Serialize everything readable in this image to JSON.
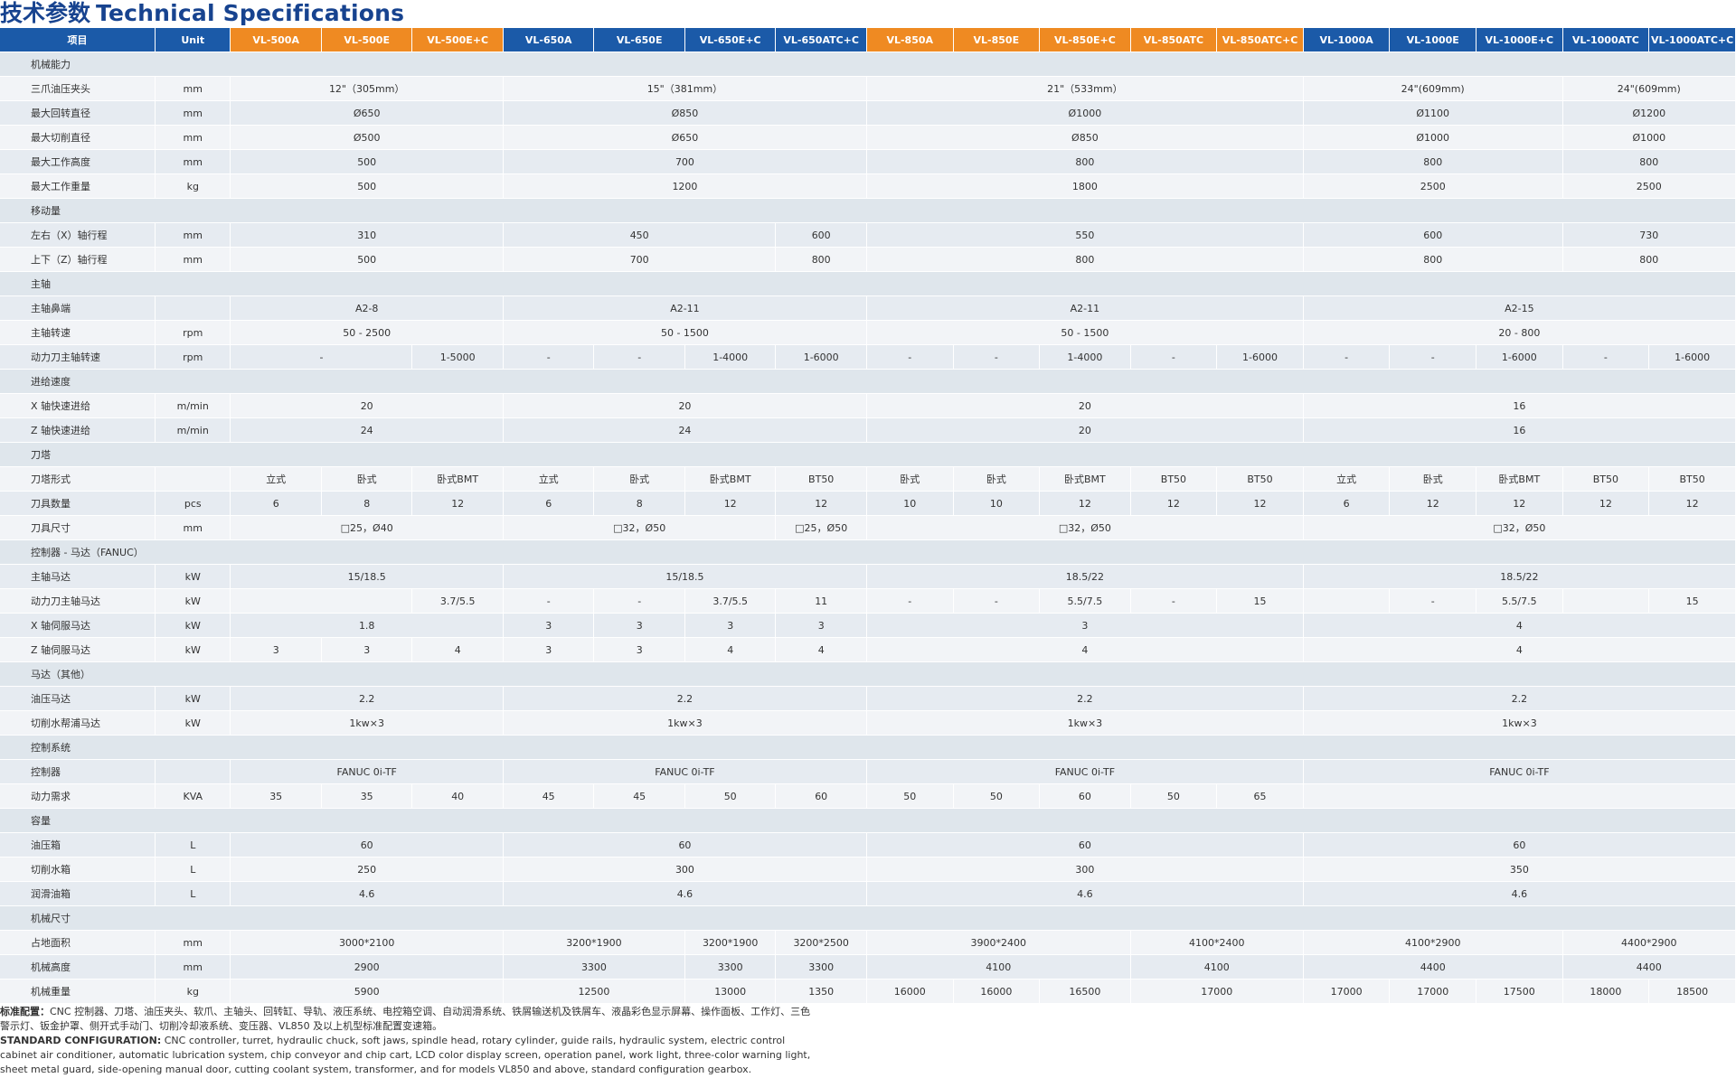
{
  "title": {
    "cn": "技术参数",
    "en": "Technical Specifications"
  },
  "header": {
    "item": "项目",
    "unit": "Unit",
    "models": [
      {
        "name": "VL-500A",
        "color": "orange"
      },
      {
        "name": "VL-500E",
        "color": "orange"
      },
      {
        "name": "VL-500E+C",
        "color": "orange"
      },
      {
        "name": "VL-650A",
        "color": "blue"
      },
      {
        "name": "VL-650E",
        "color": "blue"
      },
      {
        "name": "VL-650E+C",
        "color": "blue"
      },
      {
        "name": "VL-650ATC+C",
        "color": "blue"
      },
      {
        "name": "VL-850A",
        "color": "orange"
      },
      {
        "name": "VL-850E",
        "color": "orange"
      },
      {
        "name": "VL-850E+C",
        "color": "orange"
      },
      {
        "name": "VL-850ATC",
        "color": "orange"
      },
      {
        "name": "VL-850ATC+C",
        "color": "orange"
      },
      {
        "name": "VL-1000A",
        "color": "blue"
      },
      {
        "name": "VL-1000E",
        "color": "blue"
      },
      {
        "name": "VL-1000E+C",
        "color": "blue"
      },
      {
        "name": "VL-1000ATC",
        "color": "blue"
      },
      {
        "name": "VL-1000ATC+C",
        "color": "blue"
      }
    ]
  },
  "rows": [
    {
      "section": "机械能力"
    },
    {
      "label": "三爪油压夹头",
      "unit": "mm",
      "cells": [
        [
          "12\"（305mm）",
          3
        ],
        [
          "15\"（381mm）",
          4
        ],
        [
          "21\"（533mm）",
          5
        ],
        [
          "24\"(609mm)",
          3
        ],
        [
          "24\"(609mm)",
          2
        ]
      ]
    },
    {
      "label": "最大回转直径",
      "unit": "mm",
      "cells": [
        [
          "Ø650",
          3
        ],
        [
          "Ø850",
          4
        ],
        [
          "Ø1000",
          5
        ],
        [
          "Ø1100",
          3
        ],
        [
          "Ø1200",
          2
        ]
      ]
    },
    {
      "label": "最大切削直径",
      "unit": "mm",
      "cells": [
        [
          "Ø500",
          3
        ],
        [
          "Ø650",
          4
        ],
        [
          "Ø850",
          5
        ],
        [
          "Ø1000",
          3
        ],
        [
          "Ø1000",
          2
        ]
      ]
    },
    {
      "label": "最大工作高度",
      "unit": "mm",
      "cells": [
        [
          "500",
          3
        ],
        [
          "700",
          4
        ],
        [
          "800",
          5
        ],
        [
          "800",
          3
        ],
        [
          "800",
          2
        ]
      ]
    },
    {
      "label": "最大工作重量",
      "unit": "kg",
      "cells": [
        [
          "500",
          3
        ],
        [
          "1200",
          4
        ],
        [
          "1800",
          5
        ],
        [
          "2500",
          3
        ],
        [
          "2500",
          2
        ]
      ]
    },
    {
      "section": "移动量"
    },
    {
      "label": "左右（X）轴行程",
      "unit": "mm",
      "cells": [
        [
          "310",
          3
        ],
        [
          "450",
          3
        ],
        [
          "600",
          1
        ],
        [
          "550",
          5
        ],
        [
          "600",
          3
        ],
        [
          "730",
          2
        ]
      ]
    },
    {
      "label": "上下（Z）轴行程",
      "unit": "mm",
      "cells": [
        [
          "500",
          3
        ],
        [
          "700",
          3
        ],
        [
          "800",
          1
        ],
        [
          "800",
          5
        ],
        [
          "800",
          3
        ],
        [
          "800",
          2
        ]
      ]
    },
    {
      "section": "主轴"
    },
    {
      "label": "主轴鼻端",
      "unit": "",
      "cells": [
        [
          "A2-8",
          3
        ],
        [
          "A2-11",
          4
        ],
        [
          "A2-11",
          5
        ],
        [
          "A2-15",
          5
        ]
      ]
    },
    {
      "label": "主轴转速",
      "unit": "rpm",
      "cells": [
        [
          "50 - 2500",
          3
        ],
        [
          "50 - 1500",
          4
        ],
        [
          "50 - 1500",
          5
        ],
        [
          "20 - 800",
          5
        ]
      ]
    },
    {
      "label": "动力刀主轴转速",
      "unit": "rpm",
      "cells": [
        [
          "-",
          2
        ],
        [
          "1-5000",
          1
        ],
        [
          "-",
          1
        ],
        [
          "-",
          1
        ],
        [
          "1-4000",
          1
        ],
        [
          "1-6000",
          1
        ],
        [
          "-",
          1
        ],
        [
          "-",
          1
        ],
        [
          "1-4000",
          1
        ],
        [
          "-",
          1
        ],
        [
          "1-6000",
          1
        ],
        [
          "-",
          1
        ],
        [
          "-",
          1
        ],
        [
          "1-6000",
          1
        ],
        [
          "-",
          1
        ],
        [
          "1-6000",
          1
        ]
      ]
    },
    {
      "section": "进给速度"
    },
    {
      "label": "X 轴快速进给",
      "unit": "m/min",
      "cells": [
        [
          "20",
          3
        ],
        [
          "20",
          4
        ],
        [
          "20",
          5
        ],
        [
          "16",
          5
        ]
      ]
    },
    {
      "label": "Z 轴快速进给",
      "unit": "m/min",
      "cells": [
        [
          "24",
          3
        ],
        [
          "24",
          4
        ],
        [
          "20",
          5
        ],
        [
          "16",
          5
        ]
      ]
    },
    {
      "section": "刀塔"
    },
    {
      "label": "刀塔形式",
      "unit": "",
      "cells": [
        [
          "立式",
          1
        ],
        [
          "卧式",
          1
        ],
        [
          "卧式BMT",
          1
        ],
        [
          "立式",
          1
        ],
        [
          "卧式",
          1
        ],
        [
          "卧式BMT",
          1
        ],
        [
          "BT50",
          1
        ],
        [
          "卧式",
          1
        ],
        [
          "卧式",
          1
        ],
        [
          "卧式BMT",
          1
        ],
        [
          "BT50",
          1
        ],
        [
          "BT50",
          1
        ],
        [
          "立式",
          1
        ],
        [
          "卧式",
          1
        ],
        [
          "卧式BMT",
          1
        ],
        [
          "BT50",
          1
        ],
        [
          "BT50",
          1
        ]
      ]
    },
    {
      "label": "刀具数量",
      "unit": "pcs",
      "cells": [
        [
          "6",
          1
        ],
        [
          "8",
          1
        ],
        [
          "12",
          1
        ],
        [
          "6",
          1
        ],
        [
          "8",
          1
        ],
        [
          "12",
          1
        ],
        [
          "12",
          1
        ],
        [
          "10",
          1
        ],
        [
          "10",
          1
        ],
        [
          "12",
          1
        ],
        [
          "12",
          1
        ],
        [
          "12",
          1
        ],
        [
          "6",
          1
        ],
        [
          "12",
          1
        ],
        [
          "12",
          1
        ],
        [
          "12",
          1
        ],
        [
          "12",
          1
        ]
      ]
    },
    {
      "label": "刀具尺寸",
      "unit": "mm",
      "cells": [
        [
          "□25，Ø40",
          3
        ],
        [
          "□32，Ø50",
          3
        ],
        [
          "□25，Ø50",
          1
        ],
        [
          "□32，Ø50",
          5
        ],
        [
          "□32，Ø50",
          5
        ]
      ]
    },
    {
      "section": "控制器 - 马达（FANUC）"
    },
    {
      "label": "主轴马达",
      "unit": "kW",
      "cells": [
        [
          "15/18.5",
          3
        ],
        [
          "15/18.5",
          4
        ],
        [
          "18.5/22",
          5
        ],
        [
          "18.5/22",
          5
        ]
      ]
    },
    {
      "label": "动力刀主轴马达",
      "unit": "kW",
      "cells": [
        [
          "",
          2
        ],
        [
          "3.7/5.5",
          1
        ],
        [
          "-",
          1
        ],
        [
          "-",
          1
        ],
        [
          "3.7/5.5",
          1
        ],
        [
          "11",
          1
        ],
        [
          "-",
          1
        ],
        [
          "-",
          1
        ],
        [
          "5.5/7.5",
          1
        ],
        [
          "-",
          1
        ],
        [
          "15",
          1
        ],
        [
          "",
          1
        ],
        [
          "-",
          1
        ],
        [
          "5.5/7.5",
          1
        ],
        [
          "",
          1
        ],
        [
          "15",
          1
        ]
      ]
    },
    {
      "label": "X 轴伺服马达",
      "unit": "kW",
      "cells": [
        [
          "1.8",
          3
        ],
        [
          "3",
          1
        ],
        [
          "3",
          1
        ],
        [
          "3",
          1
        ],
        [
          "3",
          1
        ],
        [
          "3",
          5
        ],
        [
          "4",
          5
        ]
      ]
    },
    {
      "label": "Z 轴伺服马达",
      "unit": "kW",
      "cells": [
        [
          "3",
          1
        ],
        [
          "3",
          1
        ],
        [
          "4",
          1
        ],
        [
          "3",
          1
        ],
        [
          "3",
          1
        ],
        [
          "4",
          1
        ],
        [
          "4",
          1
        ],
        [
          "4",
          5
        ],
        [
          "4",
          5
        ]
      ]
    },
    {
      "section": "马达（其他）"
    },
    {
      "label": "油压马达",
      "unit": "kW",
      "cells": [
        [
          "2.2",
          3
        ],
        [
          "2.2",
          4
        ],
        [
          "2.2",
          5
        ],
        [
          "2.2",
          5
        ]
      ]
    },
    {
      "label": "切削水帮浦马达",
      "unit": "kW",
      "cells": [
        [
          "1kw×3",
          3
        ],
        [
          "1kw×3",
          4
        ],
        [
          "1kw×3",
          5
        ],
        [
          "1kw×3",
          5
        ]
      ]
    },
    {
      "section": "控制系统"
    },
    {
      "label": "控制器",
      "unit": "",
      "cells": [
        [
          "FANUC 0i-TF",
          3
        ],
        [
          "FANUC 0i-TF",
          4
        ],
        [
          "FANUC 0i-TF",
          5
        ],
        [
          "FANUC 0i-TF",
          5
        ]
      ]
    },
    {
      "label": "动力需求",
      "unit": "KVA",
      "cells": [
        [
          "35",
          1
        ],
        [
          "35",
          1
        ],
        [
          "40",
          1
        ],
        [
          "45",
          1
        ],
        [
          "45",
          1
        ],
        [
          "50",
          1
        ],
        [
          "60",
          1
        ],
        [
          "50",
          1
        ],
        [
          "50",
          1
        ],
        [
          "60",
          1
        ],
        [
          "50",
          1
        ],
        [
          "65",
          1
        ],
        [
          "",
          5
        ]
      ]
    },
    {
      "section": "容量"
    },
    {
      "label": "油压箱",
      "unit": "L",
      "cells": [
        [
          "60",
          3
        ],
        [
          "60",
          4
        ],
        [
          "60",
          5
        ],
        [
          "60",
          5
        ]
      ]
    },
    {
      "label": "切削水箱",
      "unit": "L",
      "cells": [
        [
          "250",
          3
        ],
        [
          "300",
          4
        ],
        [
          "300",
          5
        ],
        [
          "350",
          5
        ]
      ]
    },
    {
      "label": "润滑油箱",
      "unit": "L",
      "cells": [
        [
          "4.6",
          3
        ],
        [
          "4.6",
          4
        ],
        [
          "4.6",
          5
        ],
        [
          "4.6",
          5
        ]
      ]
    },
    {
      "section": "机械尺寸"
    },
    {
      "label": "占地面积",
      "unit": "mm",
      "cells": [
        [
          "3000*2100",
          3
        ],
        [
          "3200*1900",
          2
        ],
        [
          "3200*1900",
          1
        ],
        [
          "3200*2500",
          1
        ],
        [
          "3900*2400",
          3
        ],
        [
          "4100*2400",
          2
        ],
        [
          "4100*2900",
          3
        ],
        [
          "4400*2900",
          2
        ]
      ]
    },
    {
      "label": "机械高度",
      "unit": "mm",
      "cells": [
        [
          "2900",
          3
        ],
        [
          "3300",
          2
        ],
        [
          "3300",
          1
        ],
        [
          "3300",
          1
        ],
        [
          "4100",
          3
        ],
        [
          "4100",
          2
        ],
        [
          "4400",
          3
        ],
        [
          "4400",
          2
        ]
      ]
    },
    {
      "label": "机械重量",
      "unit": "kg",
      "cells": [
        [
          "5900",
          3
        ],
        [
          "12500",
          2
        ],
        [
          "13000",
          1
        ],
        [
          "1350",
          1
        ],
        [
          "16000",
          1
        ],
        [
          "16000",
          1
        ],
        [
          "16500",
          1
        ],
        [
          "17000",
          2
        ],
        [
          "17000",
          1
        ],
        [
          "17000",
          1
        ],
        [
          "17500",
          1
        ],
        [
          "18000",
          1
        ],
        [
          "18500",
          1
        ]
      ]
    }
  ],
  "notes": {
    "cn_label": "标准配置：",
    "cn_text": "CNC 控制器、刀塔、油压夹头、软爪、主轴头、回转缸、导轨、液压系统、电控箱空调、自动润滑系统、铁屑输送机及铁屑车、液晶彩色显示屏幕、操作面板、工作灯、三色警示灯、钣金护罩、侧开式手动门、切削冷却液系统、变压器、VL850 及以上机型标准配置变速箱。",
    "en_label": "STANDARD CONFIGURATION:",
    "en_text": "CNC controller, turret, hydraulic chuck, soft jaws, spindle head, rotary cylinder, guide rails, hydraulic system, electric control cabinet air conditioner, automatic lubrication system, chip conveyor and chip cart, LCD color display screen, operation panel, work light, three-color warning light, sheet metal guard, side-opening manual door, cutting coolant system, transformer, and for models VL850 and above, standard configuration gearbox."
  }
}
